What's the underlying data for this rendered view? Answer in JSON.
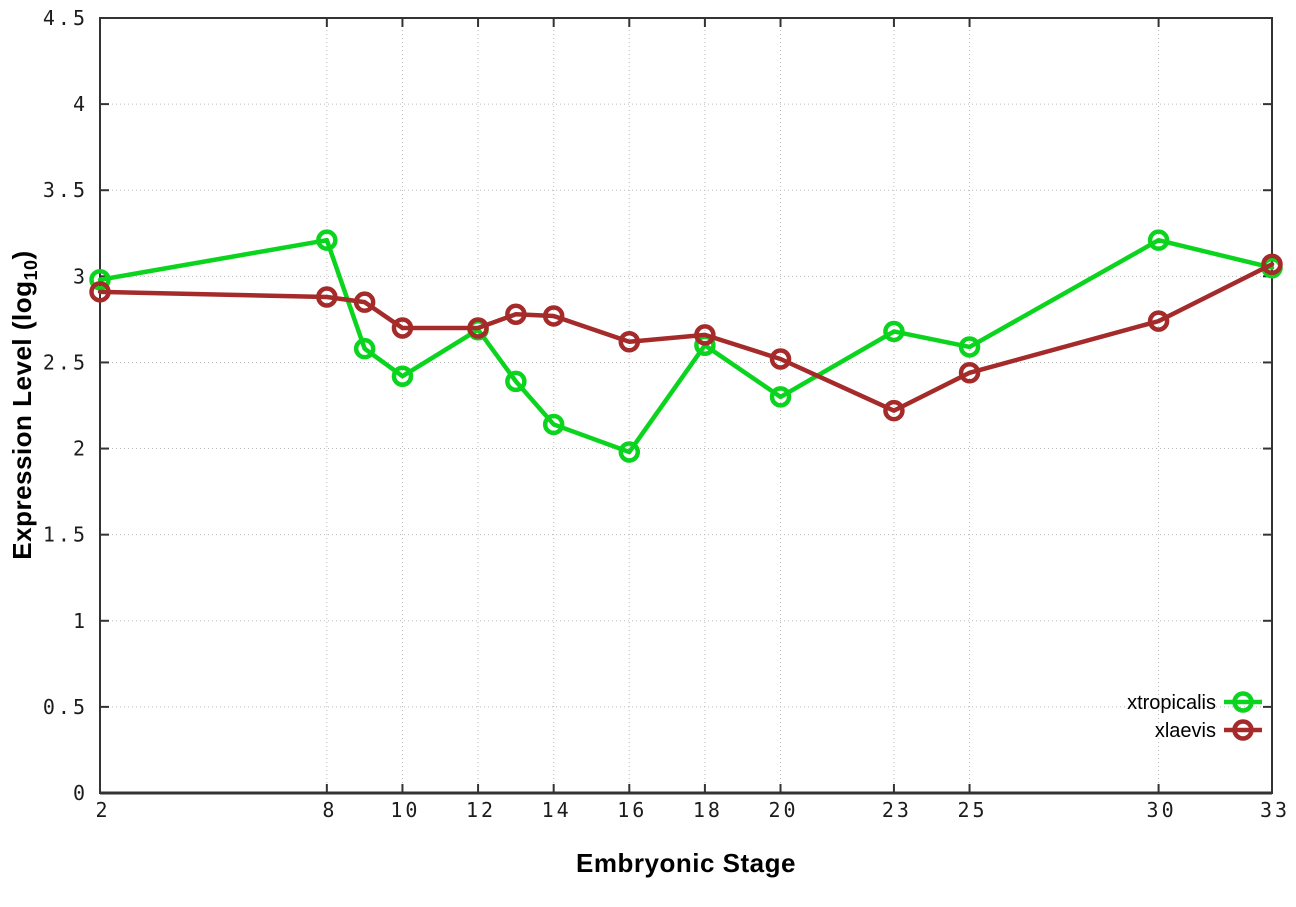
{
  "window": {
    "background": "#ffffff"
  },
  "chart_data": {
    "type": "line",
    "x": [
      2,
      8,
      9,
      10,
      12,
      13,
      14,
      16,
      18,
      20,
      23,
      25,
      30,
      33
    ],
    "series": [
      {
        "name": "xtropicalis",
        "color": "#0bd41e",
        "values": [
          2.98,
          3.21,
          2.58,
          2.42,
          2.69,
          2.39,
          2.14,
          1.98,
          2.6,
          2.3,
          2.68,
          2.59,
          3.21,
          3.05
        ]
      },
      {
        "name": "xlaevis",
        "color": "#a52a2a",
        "values": [
          2.91,
          2.88,
          2.85,
          2.7,
          2.7,
          2.78,
          2.77,
          2.62,
          2.66,
          2.52,
          2.22,
          2.44,
          2.74,
          3.07
        ]
      }
    ],
    "title": "",
    "xlabel": "Embryonic Stage",
    "ylabel": "Expression Level (log10)",
    "ylabel_parts": {
      "prefix": "Expression Level (log",
      "sub": "10",
      "suffix": ")"
    },
    "xticks": [
      2,
      8,
      10,
      12,
      14,
      16,
      18,
      20,
      23,
      25,
      30,
      33
    ],
    "yticks": [
      0,
      0.5,
      1,
      1.5,
      2,
      2.5,
      3,
      3.5,
      4,
      4.5
    ],
    "xlim": [
      2,
      33
    ],
    "ylim": [
      0,
      4.5
    ],
    "grid": true,
    "legend_position": "bottom-right",
    "axis_color": "#333333",
    "grid_color": "#bbbbbb",
    "tick_label_color": "#1c1c1c",
    "marker": "open-circle"
  }
}
